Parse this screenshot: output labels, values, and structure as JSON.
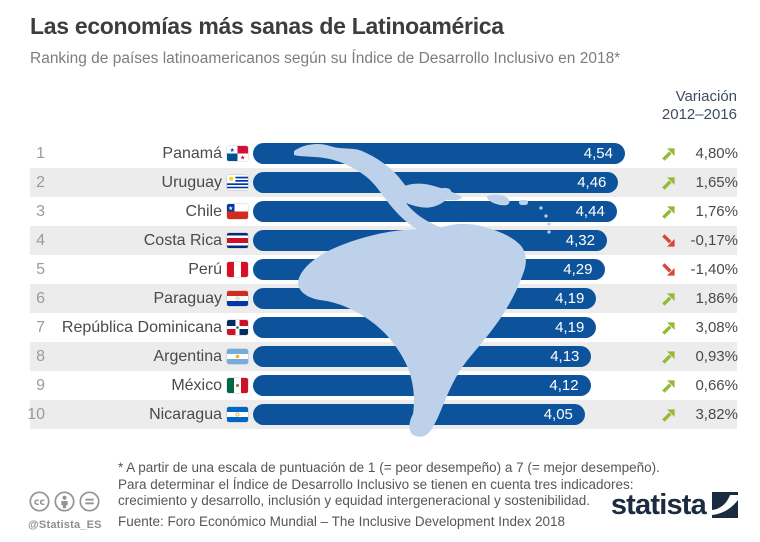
{
  "header": {
    "title": "Las economías más sanas de Latinoamérica",
    "subtitle": "Ranking de países latinoamericanos según su Índice de Desarrollo Inclusivo en 2018*"
  },
  "variation_header": {
    "line1": "Variación",
    "line2": "2012–2016"
  },
  "chart_data": {
    "type": "bar",
    "orientation": "horizontal",
    "xlim": [
      0,
      4.54
    ],
    "value_label_position": "inside-end",
    "grid": false,
    "rows": [
      {
        "rank": "1",
        "country": "Panamá",
        "flag": "pa",
        "value": 4.54,
        "value_label": "4,54",
        "trend": "up",
        "variation_label": "4,80%"
      },
      {
        "rank": "2",
        "country": "Uruguay",
        "flag": "uy",
        "value": 4.46,
        "value_label": "4,46",
        "trend": "up",
        "variation_label": "1,65%"
      },
      {
        "rank": "3",
        "country": "Chile",
        "flag": "cl",
        "value": 4.44,
        "value_label": "4,44",
        "trend": "up",
        "variation_label": "1,76%"
      },
      {
        "rank": "4",
        "country": "Costa Rica",
        "flag": "cr",
        "value": 4.32,
        "value_label": "4,32",
        "trend": "down",
        "variation_label": "-0,17%"
      },
      {
        "rank": "5",
        "country": "Perú",
        "flag": "pe",
        "value": 4.29,
        "value_label": "4,29",
        "trend": "down",
        "variation_label": "-1,40%"
      },
      {
        "rank": "6",
        "country": "Paraguay",
        "flag": "py",
        "value": 4.19,
        "value_label": "4,19",
        "trend": "up",
        "variation_label": "1,86%"
      },
      {
        "rank": "7",
        "country": "República Dominicana",
        "flag": "do",
        "value": 4.19,
        "value_label": "4,19",
        "trend": "up",
        "variation_label": "3,08%"
      },
      {
        "rank": "8",
        "country": "Argentina",
        "flag": "ar",
        "value": 4.13,
        "value_label": "4,13",
        "trend": "up",
        "variation_label": "0,93%"
      },
      {
        "rank": "9",
        "country": "México",
        "flag": "mx",
        "value": 4.12,
        "value_label": "4,12",
        "trend": "up",
        "variation_label": "0,66%"
      },
      {
        "rank": "10",
        "country": "Nicaragua",
        "flag": "ni",
        "value": 4.05,
        "value_label": "4,05",
        "trend": "up",
        "variation_label": "3,82%"
      }
    ]
  },
  "footer": {
    "footnote_lines": [
      "* A partir de una escala de puntuación de 1 (= peor desempeño) a 7 (= mejor desempeño).",
      "Para determinar el Índice de Desarrollo Inclusivo se tienen en cuenta tres indicadores:",
      "crecimiento y desarrollo, inclusión y equidad intergeneracional y sostenibilidad."
    ],
    "source": "Fuente: Foro Económico Mundial – The Inclusive Development Index 2018",
    "handle": "@Statista_ES",
    "logo_text": "statista"
  },
  "colors": {
    "bar": "#0d539c",
    "trend_up": "#94ba33",
    "trend_down": "#d8463a",
    "stripe": "#ececec",
    "map": "#bdd1ea",
    "logo_navy": "#1b2b40"
  }
}
